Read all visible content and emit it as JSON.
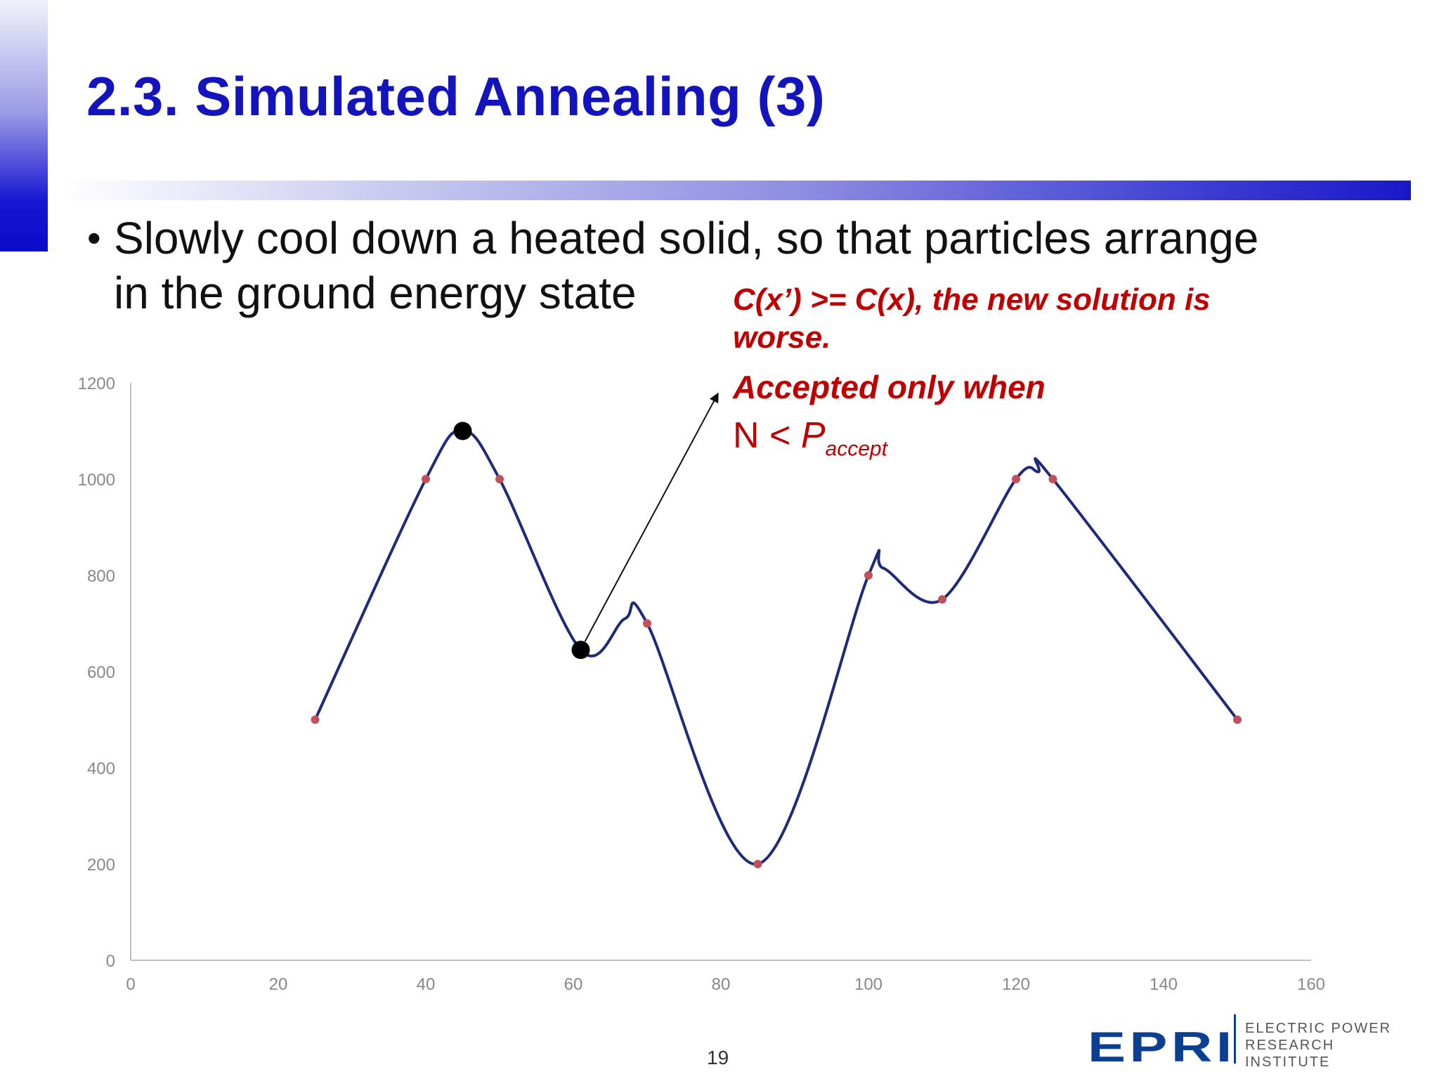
{
  "slide": {
    "title": "2.3. Simulated Annealing (3)",
    "bullet_line1": "Slowly cool down a heated solid, so that particles arrange",
    "bullet_line2": "in the ground energy state",
    "bullet_symbol": "•",
    "page_number": "19"
  },
  "annotation": {
    "condition": "C(x’) >= C(x), the new solution is worse.",
    "accepted": "Accepted only when",
    "formula_left": "N < ",
    "formula_p": "P",
    "formula_sub": "accept",
    "color": "#c00000"
  },
  "logo": {
    "mark": "EPRI",
    "line1": "ELECTRIC POWER",
    "line2": "RESEARCH INSTITUTE"
  },
  "chart_data": {
    "type": "scatter",
    "line_style": "smooth",
    "series": [
      {
        "x": [
          25,
          40,
          50,
          70,
          85,
          100,
          110,
          120,
          125,
          150
        ],
        "y": [
          500,
          1000,
          1000,
          700,
          200,
          800,
          750,
          1000,
          1000,
          500
        ],
        "line_color": "#1f2a78",
        "marker_color": "#c0505a"
      }
    ],
    "curve_points": [
      {
        "x": 25,
        "y": 500
      },
      {
        "x": 40,
        "y": 1000
      },
      {
        "x": 45,
        "y": 1100
      },
      {
        "x": 50,
        "y": 1000
      },
      {
        "x": 61,
        "y": 645
      },
      {
        "x": 67,
        "y": 710
      },
      {
        "x": 70,
        "y": 700
      },
      {
        "x": 85,
        "y": 200
      },
      {
        "x": 100,
        "y": 800
      },
      {
        "x": 102,
        "y": 815
      },
      {
        "x": 110,
        "y": 750
      },
      {
        "x": 120,
        "y": 1000
      },
      {
        "x": 123,
        "y": 1015
      },
      {
        "x": 125,
        "y": 1000
      },
      {
        "x": 150,
        "y": 500
      }
    ],
    "highlighted_points": [
      {
        "x": 45,
        "y": 1100
      },
      {
        "x": 61,
        "y": 645
      }
    ],
    "xlim": [
      0,
      160
    ],
    "ylim": [
      0,
      1200
    ],
    "xticks": [
      0,
      20,
      40,
      60,
      80,
      100,
      120,
      140,
      160
    ],
    "yticks": [
      0,
      200,
      400,
      600,
      800,
      1000,
      1200
    ],
    "grid": false,
    "title": "",
    "xlabel": "",
    "ylabel": ""
  }
}
